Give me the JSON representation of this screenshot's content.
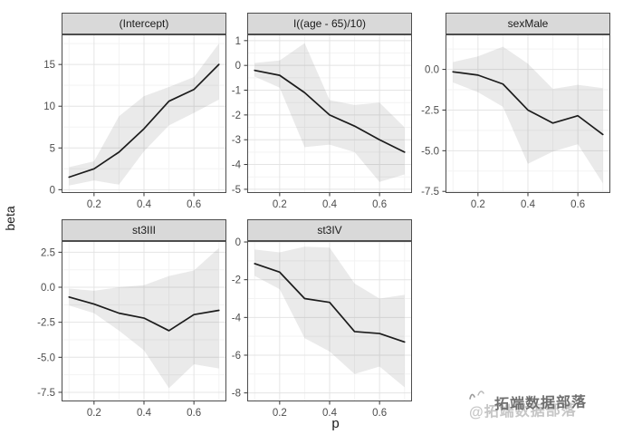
{
  "figure": {
    "background": "#ffffff"
  },
  "style": {
    "strip_bg": "#d9d9d9",
    "strip_border": "#4d4d4d",
    "strip_text_color": "#1a1a1a",
    "panel_bg": "#ffffff",
    "panel_border": "#4d4d4d",
    "grid_major": "#e4e4e4",
    "grid_minor": "#f3f3f3",
    "ribbon_fill": "rgba(90,90,90,0.13)",
    "line_color": "#1c1c1c",
    "tick_color": "#333333",
    "tick_label_color": "#4d4d4d"
  },
  "watermark": {
    "front_text": "拓端数据部落",
    "back_text": "@拓端数据部落",
    "front_color": "#6f6f6f",
    "back_color": "#c6c6c6"
  },
  "chart_data": {
    "type": "line",
    "faceted": true,
    "xlabel": "p",
    "ylabel": "beta",
    "x": [
      0.1,
      0.2,
      0.3,
      0.4,
      0.5,
      0.6,
      0.7
    ],
    "xlim": [
      0.07,
      0.73
    ],
    "x_ticks": [
      0.2,
      0.4,
      0.6
    ],
    "x_tick_labels": [
      "0.2",
      "0.4",
      "0.6"
    ],
    "grid": true,
    "legend": "none",
    "series_note": "each panel: fitted beta line with gray confidence ribbon (lower/upper)",
    "panels": [
      {
        "title": "(Intercept)",
        "row": 0,
        "col": 0,
        "y": [
          1.5,
          2.5,
          4.5,
          7.3,
          10.6,
          12.0,
          15.0
        ],
        "lower": [
          0.5,
          1.1,
          0.6,
          4.6,
          7.7,
          9.2,
          10.8
        ],
        "upper": [
          2.7,
          3.4,
          8.8,
          11.2,
          12.3,
          13.5,
          17.5
        ],
        "y_ticks": [
          0,
          5,
          10,
          15
        ],
        "y_tick_labels": [
          "0",
          "5",
          "10",
          "15"
        ],
        "ylim": [
          -0.4,
          18.6
        ]
      },
      {
        "title": "I((age - 65)/10)",
        "row": 0,
        "col": 1,
        "y": [
          -0.2,
          -0.4,
          -1.1,
          -2.0,
          -2.45,
          -3.0,
          -3.5
        ],
        "lower": [
          -0.45,
          -0.9,
          -3.3,
          -3.2,
          -3.5,
          -4.7,
          -4.4
        ],
        "upper": [
          0.1,
          0.2,
          0.9,
          -1.4,
          -1.6,
          -1.5,
          -2.5
        ],
        "y_ticks": [
          -5,
          -4,
          -3,
          -2,
          -1,
          0,
          1
        ],
        "y_tick_labels": [
          "-5",
          "-4",
          "-3",
          "-2",
          "-1",
          "0",
          "1"
        ],
        "ylim": [
          -5.15,
          1.25
        ]
      },
      {
        "title": "sexMale",
        "row": 0,
        "col": 2,
        "y": [
          -0.15,
          -0.35,
          -0.9,
          -2.5,
          -3.3,
          -2.85,
          -4.0
        ],
        "lower": [
          -0.8,
          -1.4,
          -2.3,
          -5.8,
          -5.05,
          -4.6,
          -7.0
        ],
        "upper": [
          0.45,
          0.8,
          1.4,
          0.35,
          -1.2,
          -0.95,
          -1.15
        ],
        "y_ticks": [
          -7.5,
          -5.0,
          -2.5,
          0.0
        ],
        "y_tick_labels": [
          "-7.5",
          "-5.0",
          "-2.5",
          "0.0"
        ],
        "ylim": [
          -7.6,
          2.15
        ]
      },
      {
        "title": "st3III",
        "row": 1,
        "col": 0,
        "y": [
          -0.7,
          -1.2,
          -1.85,
          -2.2,
          -3.1,
          -1.95,
          -1.65
        ],
        "lower": [
          -1.3,
          -1.85,
          -3.1,
          -4.5,
          -7.2,
          -5.5,
          -5.8
        ],
        "upper": [
          -0.1,
          -0.25,
          0.0,
          0.15,
          0.8,
          1.2,
          2.8
        ],
        "y_ticks": [
          -7.5,
          -5.0,
          -2.5,
          0.0,
          2.5
        ],
        "y_tick_labels": [
          "-7.5",
          "-5.0",
          "-2.5",
          "0.0",
          "2.5"
        ],
        "ylim": [
          -8.15,
          3.3
        ]
      },
      {
        "title": "st3IV",
        "row": 1,
        "col": 1,
        "y": [
          -1.15,
          -1.6,
          -3.0,
          -3.2,
          -4.75,
          -4.85,
          -5.3
        ],
        "lower": [
          -1.8,
          -2.5,
          -5.1,
          -5.8,
          -7.0,
          -6.6,
          -7.7
        ],
        "upper": [
          -0.4,
          -0.55,
          -0.25,
          -0.3,
          -2.2,
          -3.0,
          -2.8
        ],
        "y_ticks": [
          -8,
          -6,
          -4,
          -2,
          0
        ],
        "y_tick_labels": [
          "-8",
          "-6",
          "-4",
          "-2",
          "0"
        ],
        "ylim": [
          -8.45,
          0.05
        ]
      }
    ]
  }
}
